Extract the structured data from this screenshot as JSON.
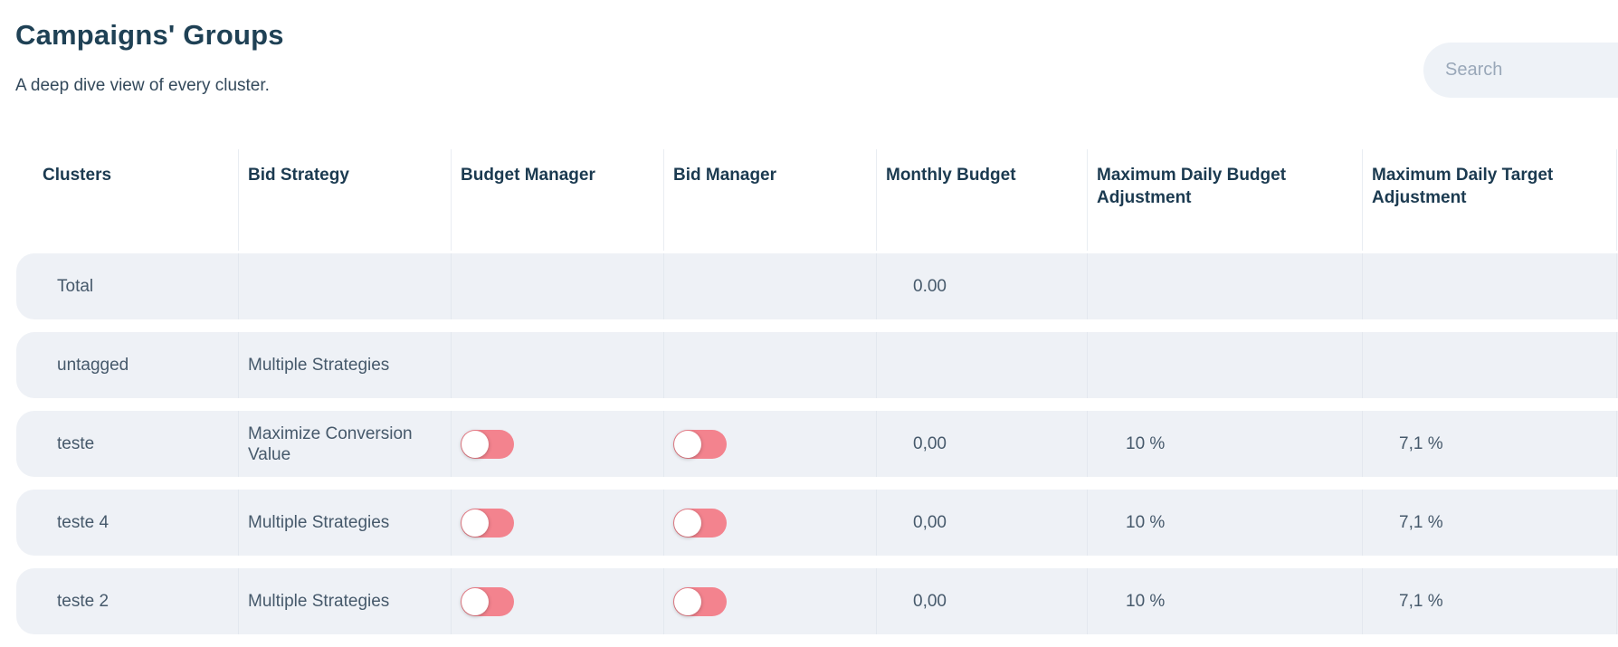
{
  "page": {
    "title": "Campaigns' Groups",
    "subtitle": "A deep dive view of every cluster."
  },
  "search": {
    "placeholder": "Search"
  },
  "table": {
    "columns": [
      {
        "label": "Clusters"
      },
      {
        "label": "Bid Strategy"
      },
      {
        "label": "Budget Manager"
      },
      {
        "label": "Bid Manager"
      },
      {
        "label": "Monthly Budget"
      },
      {
        "label": "Maximum Daily Budget Adjustment"
      },
      {
        "label": "Maximum Daily Target Adjustment"
      }
    ],
    "rows": [
      {
        "cluster": "Total",
        "bid_strategy": "",
        "budget_manager_toggle": null,
        "bid_manager_toggle": null,
        "monthly_budget": "0.00",
        "max_daily_budget_adjustment": "",
        "max_daily_target_adjustment": ""
      },
      {
        "cluster": "untagged",
        "bid_strategy": "Multiple Strategies",
        "budget_manager_toggle": null,
        "bid_manager_toggle": null,
        "monthly_budget": "",
        "max_daily_budget_adjustment": "",
        "max_daily_target_adjustment": ""
      },
      {
        "cluster": "teste",
        "bid_strategy": "Maximize Conversion Value",
        "budget_manager_toggle": "off",
        "bid_manager_toggle": "off",
        "monthly_budget": "0,00",
        "max_daily_budget_adjustment": "10 %",
        "max_daily_target_adjustment": "7,1 %"
      },
      {
        "cluster": "teste 4",
        "bid_strategy": "Multiple Strategies",
        "budget_manager_toggle": "off",
        "bid_manager_toggle": "off",
        "monthly_budget": "0,00",
        "max_daily_budget_adjustment": "10 %",
        "max_daily_target_adjustment": "7,1 %"
      },
      {
        "cluster": "teste 2",
        "bid_strategy": "Multiple Strategies",
        "budget_manager_toggle": "off",
        "bid_manager_toggle": "off",
        "monthly_budget": "0,00",
        "max_daily_budget_adjustment": "10 %",
        "max_daily_target_adjustment": "7,1 %"
      }
    ]
  },
  "colors": {
    "toggle_off": "#f3838e",
    "row_background": "#eef1f6",
    "title_text": "#1f4155",
    "header_text": "#1b3a50",
    "cell_text": "#46596b",
    "search_background": "#eef2f7"
  }
}
